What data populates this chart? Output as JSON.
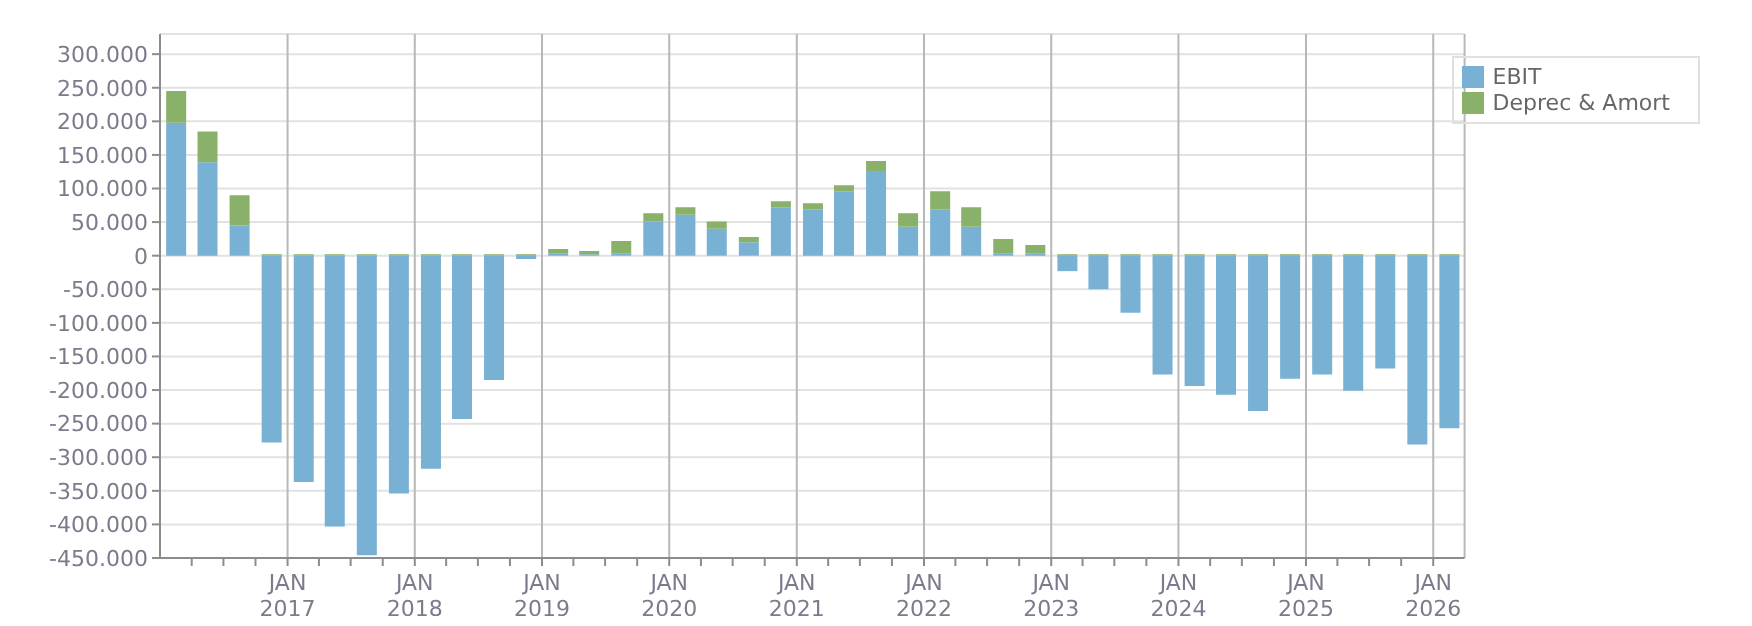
{
  "chart_data": {
    "type": "bar",
    "stacked": true,
    "legend": "top right",
    "grid": true,
    "x": [
      "2016-02-15",
      "2016-05-15",
      "2016-08-15",
      "2016-11-15",
      "2017-02-15",
      "2017-05-15",
      "2017-08-15",
      "2017-11-15",
      "2018-02-15",
      "2018-05-15",
      "2018-08-15",
      "2018-11-15",
      "2019-02-15",
      "2019-05-15",
      "2019-08-15",
      "2019-11-15",
      "2020-02-15",
      "2020-05-15",
      "2020-08-15",
      "2020-11-15",
      "2021-02-15",
      "2021-05-15",
      "2021-08-15",
      "2021-11-15",
      "2022-02-15",
      "2022-05-15",
      "2022-08-15",
      "2022-11-15",
      "2023-02-15",
      "2023-05-15",
      "2023-08-15",
      "2023-11-15",
      "2024-02-15",
      "2024-05-15",
      "2024-08-15",
      "2024-11-15",
      "2025-02-15",
      "2025-05-15",
      "2025-08-15",
      "2025-11-15",
      "2026-02-15"
    ],
    "series": [
      {
        "name": "EBIT",
        "color": "#78b1d3",
        "values": [
          198000,
          139000,
          45000,
          -278000,
          -337000,
          -403000,
          -446000,
          -354000,
          -317000,
          -243000,
          -185000,
          -5000,
          3000,
          2000,
          3000,
          51000,
          61000,
          40000,
          20000,
          72000,
          69000,
          96000,
          126000,
          43000,
          69000,
          43000,
          3000,
          3000,
          -23000,
          -50000,
          -85000,
          -177000,
          -194000,
          -207000,
          -231000,
          -183000,
          -177000,
          -201000,
          -168000,
          -281000,
          -257000
        ]
      },
      {
        "name": "Deprec & Amort",
        "color": "#8ab16a",
        "values": [
          47000,
          46000,
          45000,
          2000,
          2000,
          2000,
          2000,
          2000,
          2000,
          2000,
          2000,
          2000,
          7000,
          5000,
          19000,
          12000,
          11000,
          11000,
          8000,
          9000,
          9000,
          9000,
          15000,
          20000,
          27000,
          29000,
          22000,
          13000,
          2000,
          2000,
          2000,
          2000,
          2000,
          2000,
          2000,
          2000,
          2000,
          2000,
          2000,
          2000,
          2000
        ]
      }
    ],
    "xlim": [
      "2016-01-01",
      "2026-04-01"
    ],
    "xticks": [
      {
        "value": "2016-04-01",
        "label": null
      },
      {
        "value": "2016-07-01",
        "label": null
      },
      {
        "value": "2016-10-01",
        "label": null
      },
      {
        "value": "2017-01-01",
        "label": "JAN\n2017"
      },
      {
        "value": "2017-04-01",
        "label": null
      },
      {
        "value": "2017-07-01",
        "label": null
      },
      {
        "value": "2017-10-01",
        "label": null
      },
      {
        "value": "2018-01-01",
        "label": "JAN\n2018"
      },
      {
        "value": "2018-04-01",
        "label": null
      },
      {
        "value": "2018-07-01",
        "label": null
      },
      {
        "value": "2018-10-01",
        "label": null
      },
      {
        "value": "2019-01-01",
        "label": "JAN\n2019"
      },
      {
        "value": "2019-04-01",
        "label": null
      },
      {
        "value": "2019-07-01",
        "label": null
      },
      {
        "value": "2019-10-01",
        "label": null
      },
      {
        "value": "2020-01-01",
        "label": "JAN\n2020"
      },
      {
        "value": "2020-04-01",
        "label": null
      },
      {
        "value": "2020-07-01",
        "label": null
      },
      {
        "value": "2020-10-01",
        "label": null
      },
      {
        "value": "2021-01-01",
        "label": "JAN\n2021"
      },
      {
        "value": "2021-04-01",
        "label": null
      },
      {
        "value": "2021-07-01",
        "label": null
      },
      {
        "value": "2021-10-01",
        "label": null
      },
      {
        "value": "2022-01-01",
        "label": "JAN\n2022"
      },
      {
        "value": "2022-04-01",
        "label": null
      },
      {
        "value": "2022-07-01",
        "label": null
      },
      {
        "value": "2022-10-01",
        "label": null
      },
      {
        "value": "2023-01-01",
        "label": "JAN\n2023"
      },
      {
        "value": "2023-04-01",
        "label": null
      },
      {
        "value": "2023-07-01",
        "label": null
      },
      {
        "value": "2023-10-01",
        "label": null
      },
      {
        "value": "2024-01-01",
        "label": "JAN\n2024"
      },
      {
        "value": "2024-04-01",
        "label": null
      },
      {
        "value": "2024-07-01",
        "label": null
      },
      {
        "value": "2024-10-01",
        "label": null
      },
      {
        "value": "2025-01-01",
        "label": "JAN\n2025"
      },
      {
        "value": "2025-04-01",
        "label": null
      },
      {
        "value": "2025-07-01",
        "label": null
      },
      {
        "value": "2025-10-01",
        "label": null
      },
      {
        "value": "2026-01-01",
        "label": "JAN\n2026"
      }
    ],
    "ylim": [
      -450000,
      330000
    ],
    "yticks": [
      {
        "value": -450000,
        "label": "-450.000"
      },
      {
        "value": -400000,
        "label": "-400.000"
      },
      {
        "value": -350000,
        "label": "-350.000"
      },
      {
        "value": -300000,
        "label": "-300.000"
      },
      {
        "value": -250000,
        "label": "-250.000"
      },
      {
        "value": -200000,
        "label": "-200.000"
      },
      {
        "value": -150000,
        "label": "-150.000"
      },
      {
        "value": -100000,
        "label": "-100.000"
      },
      {
        "value": -50000,
        "label": "-50.000"
      },
      {
        "value": 0,
        "label": "0"
      },
      {
        "value": 50000,
        "label": "50.000"
      },
      {
        "value": 100000,
        "label": "100.000"
      },
      {
        "value": 150000,
        "label": "150.000"
      },
      {
        "value": 200000,
        "label": "200.000"
      },
      {
        "value": 250000,
        "label": "250.000"
      },
      {
        "value": 300000,
        "label": "300.000"
      }
    ]
  }
}
